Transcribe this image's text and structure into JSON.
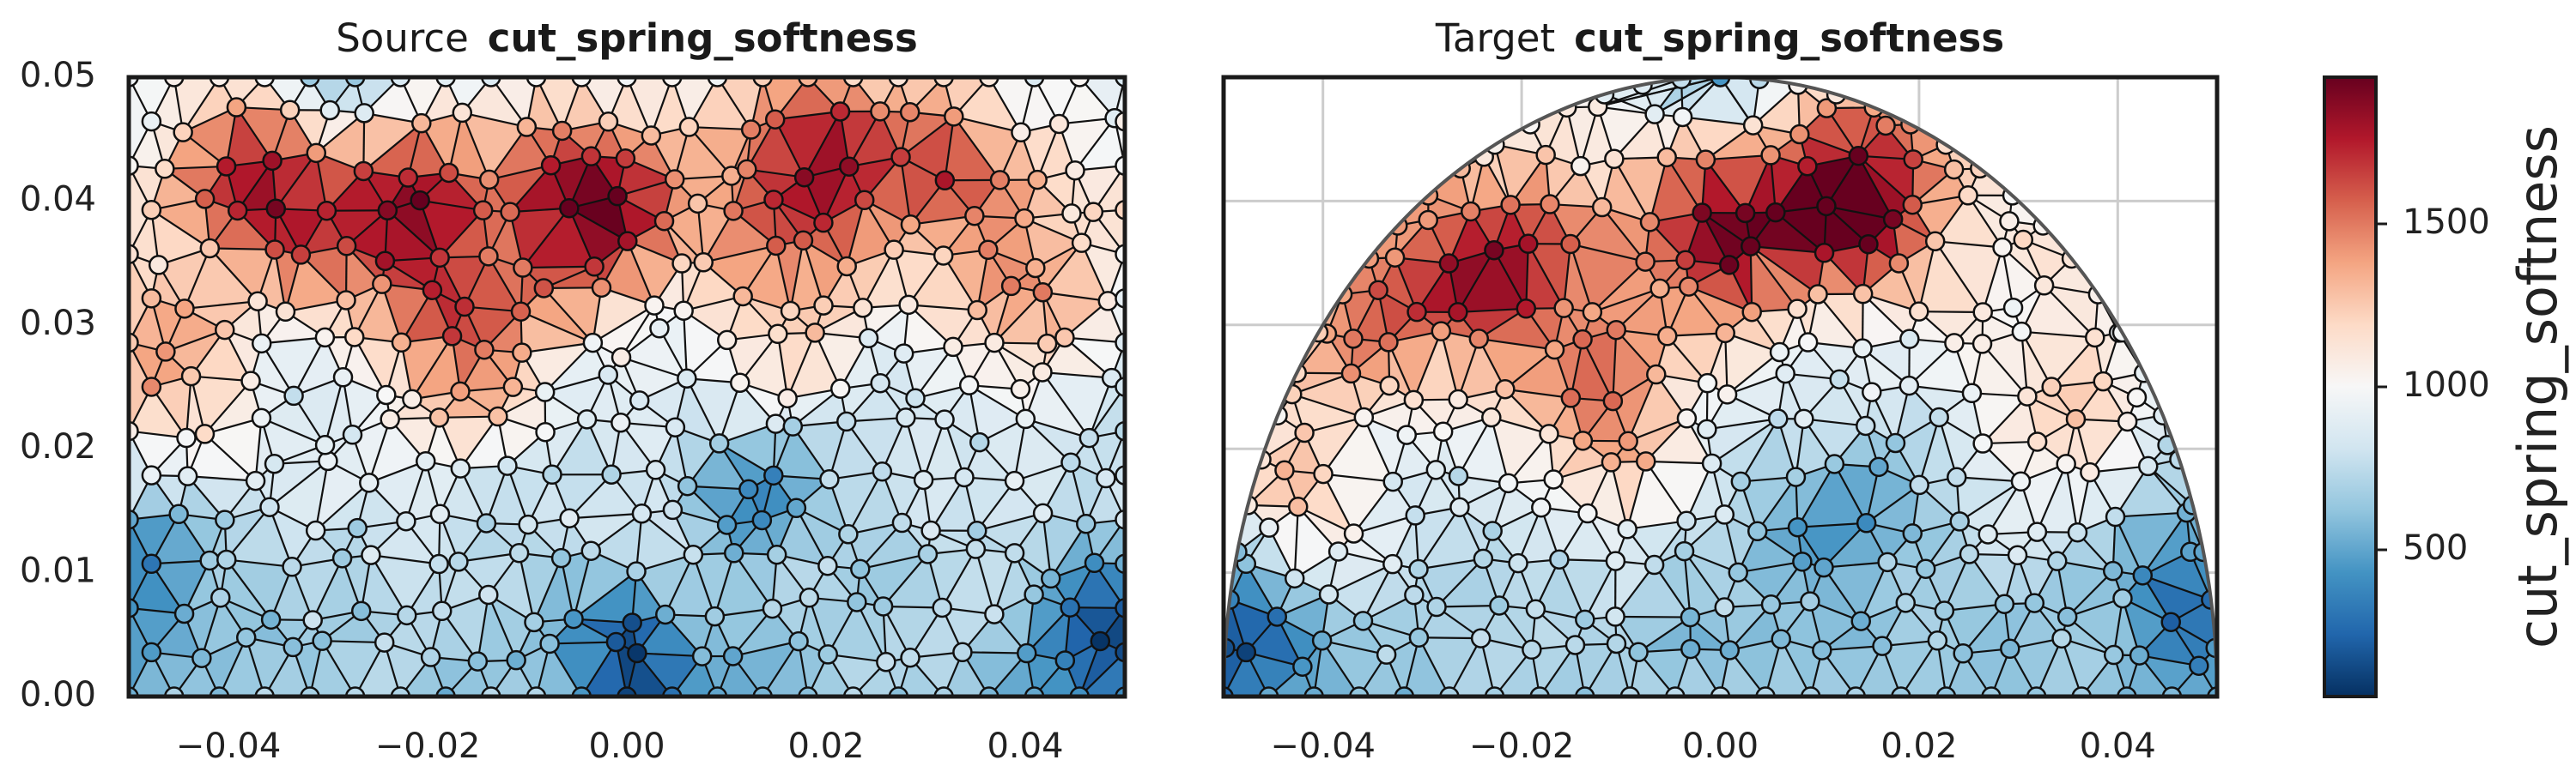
{
  "chart_data": [
    {
      "type": "heatmap",
      "title_prefix": "Source",
      "title_var": "cut_spring_softness",
      "shape": "rectangle",
      "xlim": [
        -0.05,
        0.05
      ],
      "ylim": [
        0.0,
        0.05
      ],
      "xticks": [
        "−0.04",
        "−0.02",
        "0.00",
        "0.02",
        "0.04"
      ],
      "xtick_values": [
        -0.04,
        -0.02,
        0.0,
        0.02,
        0.04
      ],
      "yticks": [
        "0.00",
        "0.01",
        "0.02",
        "0.03",
        "0.04",
        "0.05"
      ],
      "ytick_values": [
        0.0,
        0.01,
        0.02,
        0.03,
        0.04,
        0.05
      ],
      "grid": false,
      "hot_spots": [
        {
          "x": -0.035,
          "y": 0.041,
          "value": 1900
        },
        {
          "x": -0.022,
          "y": 0.039,
          "value": 1700
        },
        {
          "x": -0.004,
          "y": 0.039,
          "value": 1950
        },
        {
          "x": 0.018,
          "y": 0.043,
          "value": 1800
        },
        {
          "x": 0.031,
          "y": 0.044,
          "value": 1500
        },
        {
          "x": -0.047,
          "y": 0.026,
          "value": 1450
        },
        {
          "x": -0.016,
          "y": 0.028,
          "value": 1600
        },
        {
          "x": 0.015,
          "y": 0.027,
          "value": 1300
        },
        {
          "x": 0.04,
          "y": 0.032,
          "value": 1350
        }
      ],
      "cold_spots": [
        {
          "x": 0.013,
          "y": 0.018,
          "value": 250
        },
        {
          "x": -0.03,
          "y": 0.047,
          "value": 300
        },
        {
          "x": 0.0,
          "y": 0.003,
          "value": 200
        },
        {
          "x": -0.048,
          "y": 0.01,
          "value": 250
        },
        {
          "x": 0.048,
          "y": 0.005,
          "value": 200
        }
      ]
    },
    {
      "type": "heatmap",
      "title_prefix": "Target",
      "title_var": "cut_spring_softness",
      "shape": "half-disk",
      "xlim": [
        -0.05,
        0.05
      ],
      "ylim": [
        0.0,
        0.05
      ],
      "xticks": [
        "−0.04",
        "−0.02",
        "0.00",
        "0.02",
        "0.04"
      ],
      "xtick_values": [
        -0.04,
        -0.02,
        0.0,
        0.02,
        0.04
      ],
      "grid": true,
      "hot_spots": [
        {
          "x": -0.022,
          "y": 0.034,
          "value": 1850
        },
        {
          "x": 0.0,
          "y": 0.038,
          "value": 1900
        },
        {
          "x": 0.014,
          "y": 0.04,
          "value": 1950
        },
        {
          "x": -0.035,
          "y": 0.031,
          "value": 1500
        },
        {
          "x": -0.011,
          "y": 0.023,
          "value": 1700
        },
        {
          "x": -0.042,
          "y": 0.018,
          "value": 1350
        },
        {
          "x": 0.034,
          "y": 0.024,
          "value": 1300
        }
      ],
      "cold_spots": [
        {
          "x": -0.048,
          "y": 0.005,
          "value": 200
        },
        {
          "x": 0.0,
          "y": 0.05,
          "value": 300
        },
        {
          "x": 0.048,
          "y": 0.008,
          "value": 250
        },
        {
          "x": 0.012,
          "y": 0.015,
          "value": 400
        }
      ]
    }
  ],
  "colorbar": {
    "label": "cut_spring_softness",
    "colormap": "RdBu_r",
    "vmin": 50,
    "vmax": 1950,
    "ticks": [
      500,
      1000,
      1500
    ],
    "tick_labels": [
      "500",
      "1000",
      "1500"
    ]
  },
  "colors": {
    "low": "#053061",
    "mid": "#f7f7f7",
    "high": "#67001f",
    "grid": "#cccccc",
    "edge": "#000000"
  }
}
